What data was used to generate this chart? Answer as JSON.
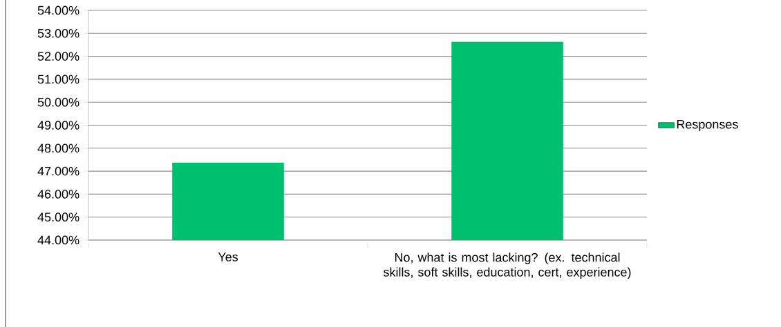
{
  "chart_data": {
    "type": "bar",
    "categories": [
      "Yes",
      "No, what is most lacking? (ex. technical skills, soft skills, education, cert, experience)"
    ],
    "series": [
      {
        "name": "Responses",
        "color": "#00bf6f",
        "values": [
          47.37,
          52.63
        ]
      }
    ],
    "ylim": [
      44,
      54
    ],
    "yticks": [
      {
        "value": 44,
        "label": "44.00%"
      },
      {
        "value": 45,
        "label": "45.00%"
      },
      {
        "value": 46,
        "label": "46.00%"
      },
      {
        "value": 47,
        "label": "47.00%"
      },
      {
        "value": 48,
        "label": "48.00%"
      },
      {
        "value": 49,
        "label": "49.00%"
      },
      {
        "value": 50,
        "label": "50.00%"
      },
      {
        "value": 51,
        "label": "51.00%"
      },
      {
        "value": 52,
        "label": "52.00%"
      },
      {
        "value": 53,
        "label": "53.00%"
      },
      {
        "value": 54,
        "label": "54.00%"
      }
    ],
    "grid": "y",
    "legend": "right"
  }
}
